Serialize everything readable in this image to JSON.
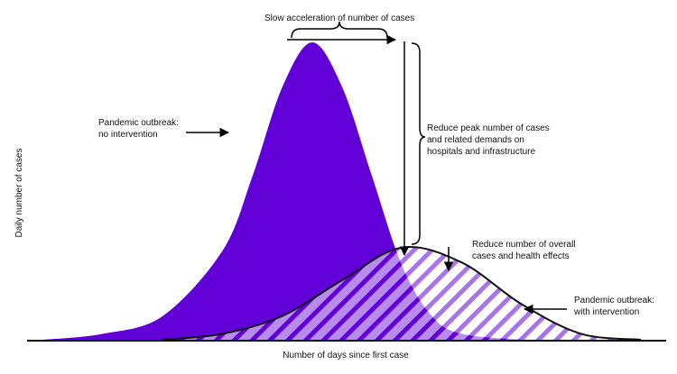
{
  "colors": {
    "no_intervention_fill": "#6200d8",
    "hatch": "#6200d8",
    "hatch_background": "#ffffff",
    "with_intervention_line": "#111111",
    "axis": "#000000",
    "annotation_arrow": "#000000",
    "text": "#111111"
  },
  "chart_data": {
    "type": "area",
    "title": "",
    "xlabel": "Number of days since first case",
    "ylabel": "Daily number of cases",
    "axis_ticks": false,
    "grid": false,
    "legend": "none",
    "values_relative": true,
    "ylim": [
      0,
      1
    ],
    "series": [
      {
        "label_text": "Pandemic outbreak:\nno intervention",
        "fill": "solid",
        "x": [
          0,
          10,
          20,
          30,
          35,
          40,
          45,
          50,
          55,
          60,
          65,
          70,
          80
        ],
        "y": [
          0.0,
          0.02,
          0.08,
          0.3,
          0.55,
          0.85,
          1.0,
          0.85,
          0.55,
          0.25,
          0.08,
          0.02,
          0.0
        ]
      },
      {
        "label_text": "Pandemic outbreak:\nwith intervention",
        "fill": "hatched",
        "x": [
          20,
          30,
          40,
          50,
          60,
          70,
          80,
          90,
          100
        ],
        "y": [
          0.0,
          0.02,
          0.08,
          0.2,
          0.31,
          0.26,
          0.12,
          0.02,
          0.0
        ]
      }
    ],
    "annotations": [
      {
        "id": "slow",
        "text": "Slow acceleration of number of cases"
      },
      {
        "id": "peak",
        "text": "Reduce peak number of cases\nand related demands on\nhospitals and infrastructure"
      },
      {
        "id": "overall",
        "text": "Reduce number of overall\ncases and health effects"
      }
    ]
  }
}
